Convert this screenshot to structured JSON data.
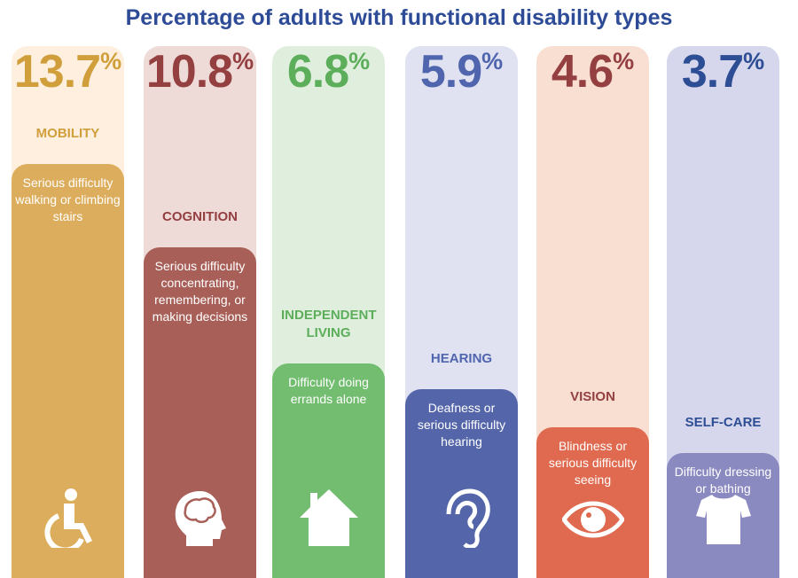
{
  "title": "Percentage of adults with functional disability types",
  "chart_data": {
    "type": "bar",
    "title": "Percentage of adults with functional disability types",
    "unit": "%",
    "categories": [
      "MOBILITY",
      "COGNITION",
      "INDEPENDENT LIVING",
      "HEARING",
      "VISION",
      "SELF-CARE"
    ],
    "values": [
      13.7,
      10.8,
      6.8,
      5.9,
      4.6,
      3.7
    ],
    "items": [
      {
        "name": "MOBILITY",
        "value": 13.7,
        "display": "13.7",
        "pct": "%",
        "description": "Serious difficulty walking or climbing stairs",
        "icon": "wheelchair-icon",
        "color": "#dcad5c",
        "bg": "#feefde",
        "text_color": "#d09f3c"
      },
      {
        "name": "COGNITION",
        "value": 10.8,
        "display": "10.8",
        "pct": "%",
        "description": "Serious difficulty concentrating, remembering, or making decisions",
        "icon": "brain-head-icon",
        "color": "#a85f58",
        "bg": "#eedad7",
        "text_color": "#943f40"
      },
      {
        "name": "INDEPENDENT LIVING",
        "value": 6.8,
        "display": "6.8",
        "pct": "%",
        "description": "Difficulty doing errands alone",
        "icon": "house-icon",
        "color": "#72bd6f",
        "bg": "#e0efdd",
        "text_color": "#5cae5b"
      },
      {
        "name": "HEARING",
        "value": 5.9,
        "display": "5.9",
        "pct": "%",
        "description": "Deafness or serious difficulty hearing",
        "icon": "ear-icon",
        "color": "#5466a9",
        "bg": "#e0e1f1",
        "text_color": "#4f65ad"
      },
      {
        "name": "VISION",
        "value": 4.6,
        "display": "4.6",
        "pct": "%",
        "description": "Blindness or serious difficulty seeing",
        "icon": "eye-icon",
        "color": "#df6a4f",
        "bg": "#f8dfd2",
        "text_color": "#943f40"
      },
      {
        "name": "SELF-CARE",
        "value": 3.7,
        "display": "3.7",
        "pct": "%",
        "description": "Difficulty dressing or bathing",
        "icon": "shirt-icon",
        "color": "#8b8ac0",
        "bg": "#d6d7ec",
        "text_color": "#2d4e95"
      }
    ]
  }
}
